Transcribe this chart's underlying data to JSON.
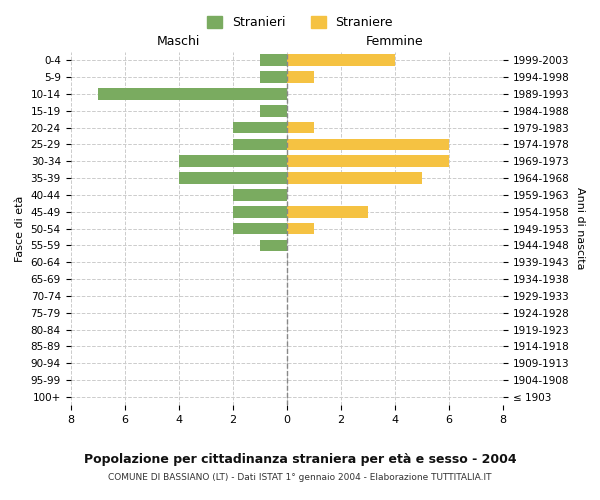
{
  "age_groups": [
    "100+",
    "95-99",
    "90-94",
    "85-89",
    "80-84",
    "75-79",
    "70-74",
    "65-69",
    "60-64",
    "55-59",
    "50-54",
    "45-49",
    "40-44",
    "35-39",
    "30-34",
    "25-29",
    "20-24",
    "15-19",
    "10-14",
    "5-9",
    "0-4"
  ],
  "birth_years": [
    "≤ 1903",
    "1904-1908",
    "1909-1913",
    "1914-1918",
    "1919-1923",
    "1924-1928",
    "1929-1933",
    "1934-1938",
    "1939-1943",
    "1944-1948",
    "1949-1953",
    "1954-1958",
    "1959-1963",
    "1964-1968",
    "1969-1973",
    "1974-1978",
    "1979-1983",
    "1984-1988",
    "1989-1993",
    "1994-1998",
    "1999-2003"
  ],
  "males": [
    0,
    0,
    0,
    0,
    0,
    0,
    0,
    0,
    0,
    1,
    2,
    2,
    2,
    4,
    4,
    2,
    2,
    1,
    7,
    1,
    1
  ],
  "females": [
    0,
    0,
    0,
    0,
    0,
    0,
    0,
    0,
    0,
    0,
    1,
    3,
    0,
    5,
    6,
    6,
    1,
    0,
    0,
    1,
    4
  ],
  "male_color": "#7aab60",
  "female_color": "#f5c242",
  "title": "Popolazione per cittadinanza straniera per età e sesso - 2004",
  "subtitle": "COMUNE DI BASSIANO (LT) - Dati ISTAT 1° gennaio 2004 - Elaborazione TUTTITALIA.IT",
  "xlabel_left": "Maschi",
  "xlabel_right": "Femmine",
  "ylabel_left": "Fasce di età",
  "ylabel_right": "Anni di nascita",
  "legend_male": "Stranieri",
  "legend_female": "Straniere",
  "xlim": 8,
  "bg_color": "#ffffff",
  "grid_color": "#cccccc",
  "bar_height": 0.7
}
